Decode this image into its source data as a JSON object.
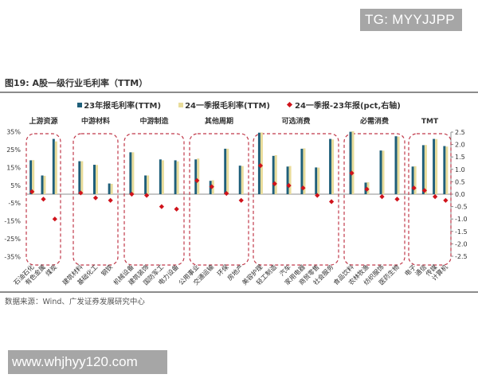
{
  "watermarks": {
    "top": "TG: MYYJJPP",
    "bottom": "www.whjhyy120.com"
  },
  "figure": {
    "title": "图19:  A股一级行业毛利率（TTM）",
    "source": "数据来源：Wind、广发证券发展研究中心"
  },
  "legend": {
    "series1": "23年报毛利率(TTM)",
    "series2": "24一季报毛利率(TTM)",
    "series3": "24一季报-23年报(pct,右轴)"
  },
  "colors": {
    "series1": "#1f5f7a",
    "series2": "#e8dc9a",
    "series3": "#d0131b",
    "group_border": "#c0394a",
    "axis": "#8c8c8c"
  },
  "chart_data": {
    "type": "bar",
    "title": "A股一级行业毛利率（TTM）",
    "xlabel": "",
    "ylabel": "",
    "y_left": {
      "ticks": [
        "35%",
        "25%",
        "15%",
        "5%",
        "-5%",
        "-15%",
        "-25%",
        "-35%"
      ],
      "range": [
        -35,
        35
      ]
    },
    "y_right": {
      "ticks": [
        "2.5",
        "2.0",
        "1.5",
        "1.0",
        "0.5",
        "0.0",
        "-0.5",
        "-1.0",
        "-1.5",
        "-2.0",
        "-2.5"
      ],
      "range": [
        -2.5,
        2.5
      ]
    },
    "legend_position": "top",
    "grid": false,
    "groups": [
      {
        "name": "上游资源",
        "categories": [
          "石油石化",
          "有色金属",
          "煤炭"
        ]
      },
      {
        "name": "中游材料",
        "categories": [
          "建筑材料",
          "基础化工",
          "钢铁"
        ]
      },
      {
        "name": "中游制造",
        "categories": [
          "机械设备",
          "建筑装饰",
          "国防军工",
          "电力设备"
        ]
      },
      {
        "name": "其他周期",
        "categories": [
          "公用事业",
          "交通运输",
          "环保",
          "房地产"
        ]
      },
      {
        "name": "可选消费",
        "categories": [
          "美容护理",
          "轻工制造",
          "汽车",
          "家用电器",
          "商贸零售",
          "社会服务"
        ]
      },
      {
        "name": "必需消费",
        "categories": [
          "食品饮料",
          "农林牧渔",
          "纺织服饰",
          "医药生物"
        ]
      },
      {
        "name": "TMT",
        "categories": [
          "电子",
          "通信",
          "传媒",
          "计算机"
        ]
      }
    ],
    "categories": [
      "石油石化",
      "有色金属",
      "煤炭",
      "建筑材料",
      "基础化工",
      "钢铁",
      "机械设备",
      "建筑装饰",
      "国防军工",
      "电力设备",
      "公用事业",
      "交通运输",
      "环保",
      "房地产",
      "美容护理",
      "轻工制造",
      "汽车",
      "家用电器",
      "商贸零售",
      "社会服务",
      "食品饮料",
      "农林牧渔",
      "纺织服饰",
      "医药生物",
      "电子",
      "通信",
      "传媒",
      "计算机"
    ],
    "series": [
      {
        "name": "23年报毛利率(TTM)",
        "axis": "left",
        "unit": "%",
        "values": [
          19.0,
          10.5,
          31.0,
          18.5,
          16.5,
          6.0,
          23.5,
          10.5,
          19.5,
          19.0,
          19.5,
          7.5,
          25.5,
          16.0,
          34.5,
          21.5,
          15.5,
          25.5,
          15.0,
          31.0,
          35.0,
          6.5,
          24.5,
          32.5,
          15.5,
          27.5,
          31.0,
          27.0
        ]
      },
      {
        "name": "24一季报毛利率(TTM)",
        "axis": "left",
        "unit": "%",
        "values": [
          19.1,
          10.3,
          29.6,
          18.5,
          16.4,
          5.8,
          23.5,
          10.5,
          19.0,
          18.4,
          20.0,
          7.8,
          25.5,
          15.8,
          34.6,
          21.9,
          15.8,
          25.7,
          14.9,
          30.7,
          35.3,
          6.7,
          24.4,
          32.3,
          15.7,
          27.6,
          30.9,
          26.7
        ]
      },
      {
        "name": "24一季报-23年报(pct,右轴)",
        "axis": "right",
        "unit": "pct",
        "values": [
          0.1,
          -0.2,
          -1.0,
          0.05,
          -0.15,
          -0.25,
          0.0,
          -0.05,
          -0.5,
          -0.6,
          0.55,
          0.3,
          0.03,
          -0.25,
          1.15,
          0.42,
          0.35,
          0.25,
          -0.05,
          -0.3,
          0.85,
          0.2,
          -0.1,
          -0.2,
          0.25,
          0.15,
          -0.1,
          -0.25
        ]
      }
    ]
  }
}
